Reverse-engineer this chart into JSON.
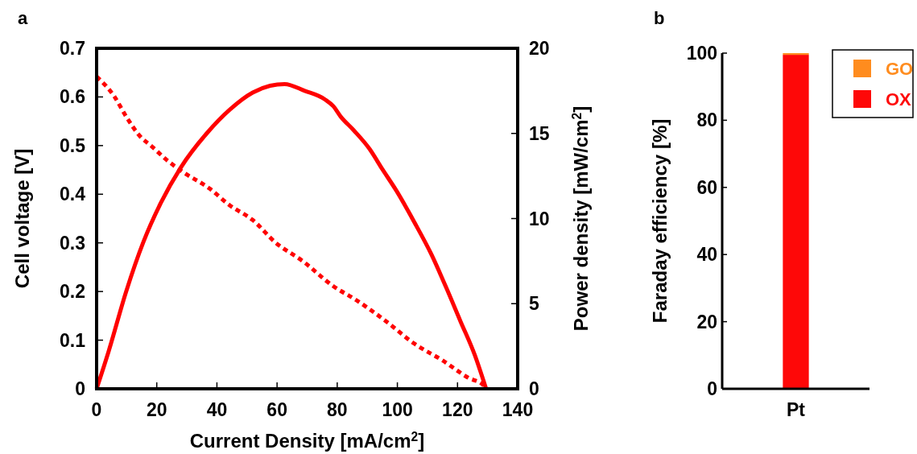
{
  "chart_data": [
    {
      "type": "line",
      "title": "a",
      "xlabel": "Current Density [mA/cm$^{2}$]",
      "ylabel": "Cell voltage [V]",
      "y2label": "Power density [mW/cm$^{2}$]",
      "xlim": [
        0,
        140
      ],
      "xticks": [
        0,
        20,
        40,
        60,
        80,
        100,
        120,
        140
      ],
      "ylim": [
        0,
        0.7
      ],
      "yticks": [
        0,
        0.1,
        0.2,
        0.3,
        0.4,
        0.5,
        0.6,
        0.7
      ],
      "y2lim": [
        0,
        20
      ],
      "y2ticks": [
        0,
        5,
        10,
        15,
        20
      ],
      "grid": false,
      "series": [
        {
          "color": "#ff0000",
          "line_style": "dashed",
          "x": [
            0,
            5.9,
            9.8,
            14.6,
            18.4,
            23.2,
            28.9,
            37.5,
            44.3,
            51.9,
            59.6,
            68.2,
            78.7,
            86.4,
            96,
            105.6,
            115.1,
            123.8,
            128.5,
            129.5
          ],
          "values": [
            0.642,
            0.601,
            0.56,
            0.518,
            0.498,
            0.471,
            0.445,
            0.412,
            0.377,
            0.347,
            0.3,
            0.264,
            0.211,
            0.182,
            0.14,
            0.093,
            0.058,
            0.022,
            0.008,
            0
          ]
        },
        {
          "color": "#ff0000",
          "line_style": "solid",
          "axis": "y2",
          "x": [
            0,
            4,
            9.8,
            15.5,
            21.3,
            28,
            36.6,
            44.3,
            51.9,
            57.7,
            62.5,
            69.2,
            75.9,
            78.7,
            81.1,
            85.4,
            90.7,
            95,
            99.8,
            105.6,
            111.3,
            116.1,
            120.9,
            125.7,
            129.5
          ],
          "values": [
            0,
            2.2,
            5.7,
            8.6,
            10.9,
            13,
            15,
            16.4,
            17.4,
            17.8,
            17.9,
            17.5,
            17,
            16.6,
            16,
            15.2,
            14.1,
            12.9,
            11.6,
            9.8,
            7.9,
            6,
            4,
            2,
            0
          ]
        }
      ]
    },
    {
      "type": "bar",
      "title": "b",
      "ylabel": "Faraday efficiency [%]",
      "categories": [
        "Pt"
      ],
      "stacked": true,
      "ylim": [
        0,
        100
      ],
      "yticks": [
        0,
        20,
        40,
        60,
        80,
        100
      ],
      "grid": false,
      "legend": "top right",
      "series": [
        {
          "name": "OX",
          "color": "#fe0808",
          "values": [
            99.5
          ]
        },
        {
          "name": "GO",
          "color": "#ff8c1e",
          "values": [
            0.5
          ]
        }
      ]
    }
  ]
}
